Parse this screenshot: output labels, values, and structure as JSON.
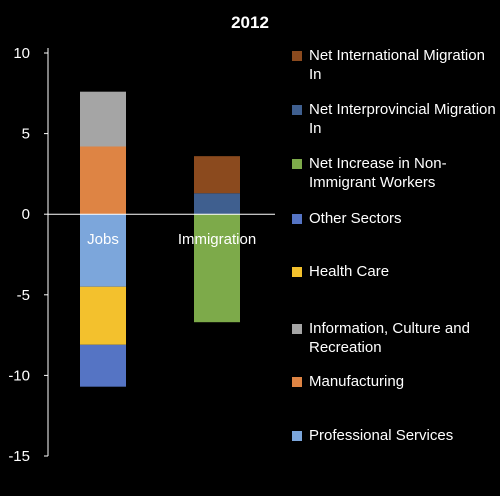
{
  "chart_data": {
    "type": "bar",
    "stacked": true,
    "title": "2012",
    "xlabel": "",
    "ylabel": "",
    "ylim": [
      -15,
      10
    ],
    "yticks": [
      10,
      5,
      0,
      -5,
      -10,
      -15
    ],
    "categories": [
      "Jobs",
      "Immigration"
    ],
    "series": [
      {
        "name": "Net International Migration In",
        "color": "#8B4A1E",
        "values": [
          0,
          2.3
        ]
      },
      {
        "name": "Net Interprovincial Migration In",
        "color": "#3F5F8F",
        "values": [
          0,
          1.3
        ]
      },
      {
        "name": "Net Increase in Non-Immigrant Workers",
        "color": "#7DAA4A",
        "values": [
          0,
          -6.7
        ]
      },
      {
        "name": "Other Sectors",
        "color": "#5574C4",
        "values": [
          -2.6,
          0
        ]
      },
      {
        "name": "Health Care",
        "color": "#F3C12D",
        "values": [
          -3.6,
          0
        ]
      },
      {
        "name": "Information, Culture and Recreation",
        "color": "#A5A5A5",
        "values": [
          3.4,
          0
        ]
      },
      {
        "name": "Manufacturing",
        "color": "#DE8444",
        "values": [
          4.2,
          0
        ]
      },
      {
        "name": "Professional Services",
        "color": "#7CA6DB",
        "values": [
          -4.5,
          0
        ]
      }
    ],
    "legend_position": "right",
    "grid": false
  }
}
